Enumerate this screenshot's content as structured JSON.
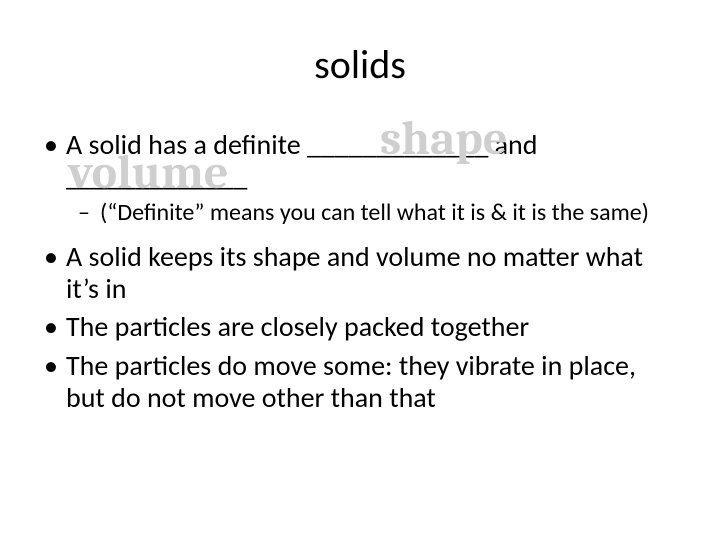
{
  "slide": {
    "title": "solids",
    "title_fontsize": 40,
    "background_color": "#ffffff",
    "text_color": "#000000",
    "overlay_color": "#cfcfcf",
    "overlay_font": "Cambria",
    "overlay_fontsize": 48,
    "body_fontsize": 28,
    "sub_fontsize": 24,
    "bullets": {
      "b1_pre": "A solid has a definite ",
      "b1_blank1": "_____________",
      "b1_mid": " and ",
      "b1_blank2": "_____________",
      "overlay1": "shape",
      "overlay2": "volume",
      "b1_sub": "(“Definite” means you can tell what it is & it is the same)",
      "b2": "A solid keeps its shape and volume no matter what it’s in",
      "b3": "The particles are closely packed together",
      "b4": "The particles do move some: they vibrate in place, but do not move other than that"
    }
  }
}
